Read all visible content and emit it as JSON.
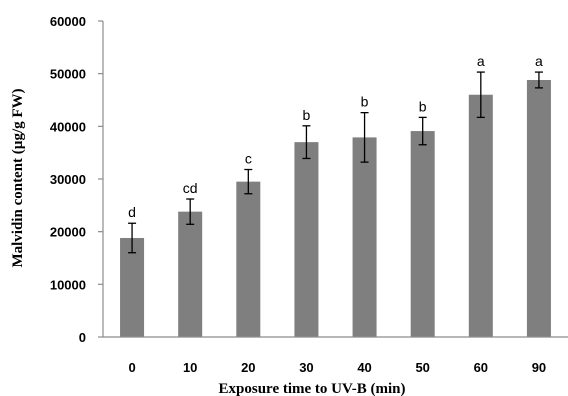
{
  "chart_data": {
    "type": "bar",
    "xlabel": "Exposure time to UV-B (min)",
    "ylabel": "Malvidin content (µg/g FW)",
    "categories": [
      "0",
      "10",
      "20",
      "30",
      "40",
      "50",
      "60",
      "90"
    ],
    "values": [
      18800,
      23800,
      29500,
      37000,
      37900,
      39100,
      46000,
      48800
    ],
    "errors": [
      2800,
      2400,
      2300,
      3100,
      4700,
      2600,
      4300,
      1500
    ],
    "significance_letters": [
      "d",
      "cd",
      "c",
      "b",
      "b",
      "b",
      "a",
      "a"
    ],
    "ylim": [
      0,
      60000
    ],
    "yticks": [
      0,
      10000,
      20000,
      30000,
      40000,
      50000,
      60000
    ],
    "grid": false,
    "legend": "none",
    "colors": {
      "bar": "#7f7f7f",
      "axis": "#8c8c8c",
      "error": "#000000"
    }
  }
}
